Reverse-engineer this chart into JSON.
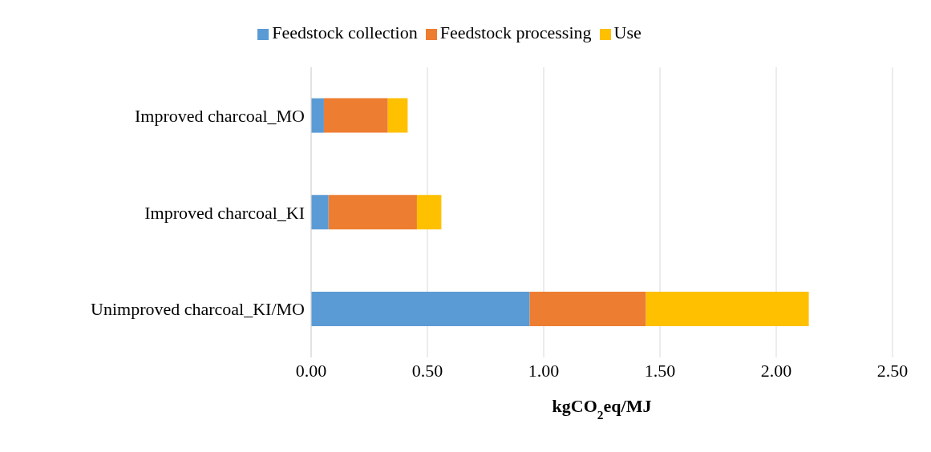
{
  "chart_data": {
    "type": "bar",
    "orientation": "horizontal",
    "stacked": true,
    "categories": [
      "Improved charcoal_MO",
      "Improved charcoal_KI",
      "Unimproved charcoal_KI/MO"
    ],
    "series": [
      {
        "name": "Feedstock collection",
        "color": "#5b9bd5",
        "values": [
          0.055,
          0.075,
          0.94
        ]
      },
      {
        "name": "Feedstock processing",
        "color": "#ed7d31",
        "values": [
          0.275,
          0.38,
          0.5
        ]
      },
      {
        "name": "Use",
        "color": "#ffc000",
        "values": [
          0.085,
          0.105,
          0.7
        ]
      }
    ],
    "xlabel": "kgCO$_{2}$eq/MJ",
    "xlim": [
      0,
      2.5
    ],
    "xticks": [
      {
        "value": 0,
        "label": "0.00"
      },
      {
        "value": 0.5,
        "label": "0.50"
      },
      {
        "value": 1,
        "label": "1.00"
      },
      {
        "value": 1.5,
        "label": "1.50"
      },
      {
        "value": 2,
        "label": "2.00"
      },
      {
        "value": 2.5,
        "label": "2.50"
      }
    ],
    "grid": "x",
    "legend": "top"
  }
}
